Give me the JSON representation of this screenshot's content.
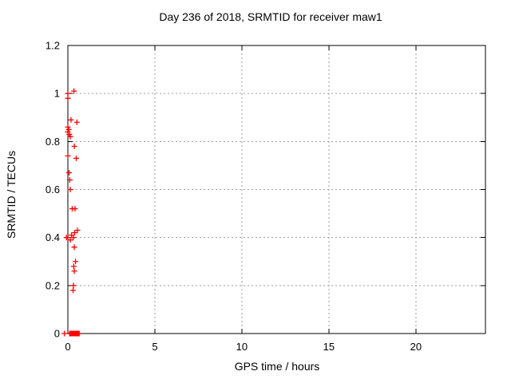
{
  "title": "Day 236 of 2018, SRMTID for receiver maw1",
  "colors": {
    "background": "#ffffff",
    "frame": "#000000",
    "grid": "#9e9e9e",
    "marker": "#ff0000",
    "text": "#000000"
  },
  "chart_data": {
    "type": "scatter",
    "title": "Day 236 of 2018, SRMTID for receiver maw1",
    "xlabel": "GPS time / hours",
    "ylabel": "SRMTID / TECUs",
    "xlim": [
      0,
      24
    ],
    "ylim": [
      0,
      1.2
    ],
    "x_ticks": [
      0,
      5,
      10,
      15,
      20
    ],
    "x_tick_labels": [
      "0",
      "5",
      "10",
      "15",
      "20"
    ],
    "y_ticks": [
      0,
      0.2,
      0.4,
      0.6,
      0.8,
      1.0,
      1.2
    ],
    "y_tick_labels": [
      "0",
      "0.2",
      "0.4",
      "0.6",
      "0.8",
      "1",
      "1.2"
    ],
    "grid": true,
    "grid_style": "dashed",
    "legend": "none",
    "marker": "plus",
    "series": [
      {
        "name": "SRMTID",
        "color": "#ff0000",
        "points": [
          [
            0.0,
            1.0
          ],
          [
            0.35,
            1.01
          ],
          [
            0.0,
            0.98
          ],
          [
            0.18,
            0.89
          ],
          [
            0.52,
            0.88
          ],
          [
            0.0,
            0.86
          ],
          [
            0.05,
            0.85
          ],
          [
            0.08,
            0.83
          ],
          [
            0.0,
            0.84
          ],
          [
            0.14,
            0.82
          ],
          [
            0.37,
            0.78
          ],
          [
            0.0,
            0.74
          ],
          [
            0.48,
            0.73
          ],
          [
            0.07,
            0.67
          ],
          [
            0.11,
            0.64
          ],
          [
            0.14,
            0.6
          ],
          [
            0.25,
            0.52
          ],
          [
            0.41,
            0.52
          ],
          [
            0.55,
            0.43
          ],
          [
            0.39,
            0.42
          ],
          [
            0.21,
            0.41
          ],
          [
            -0.08,
            0.4
          ],
          [
            0.32,
            0.4
          ],
          [
            0.14,
            0.39
          ],
          [
            0.37,
            0.36
          ],
          [
            0.44,
            0.3
          ],
          [
            0.34,
            0.28
          ],
          [
            0.37,
            0.26
          ],
          [
            0.32,
            0.2
          ],
          [
            0.3,
            0.18
          ],
          [
            -0.2,
            0.0
          ],
          [
            0.1,
            0.0
          ],
          [
            0.14,
            0.0
          ],
          [
            0.18,
            0.0
          ],
          [
            0.22,
            0.0
          ],
          [
            0.26,
            0.0
          ],
          [
            0.3,
            0.0
          ],
          [
            0.34,
            0.0
          ],
          [
            0.38,
            0.0
          ],
          [
            0.42,
            0.0
          ],
          [
            0.46,
            0.0
          ],
          [
            0.5,
            0.0
          ],
          [
            0.54,
            0.0
          ],
          [
            0.58,
            0.0
          ],
          [
            0.62,
            0.0
          ],
          [
            0.65,
            0.0
          ]
        ]
      }
    ]
  }
}
